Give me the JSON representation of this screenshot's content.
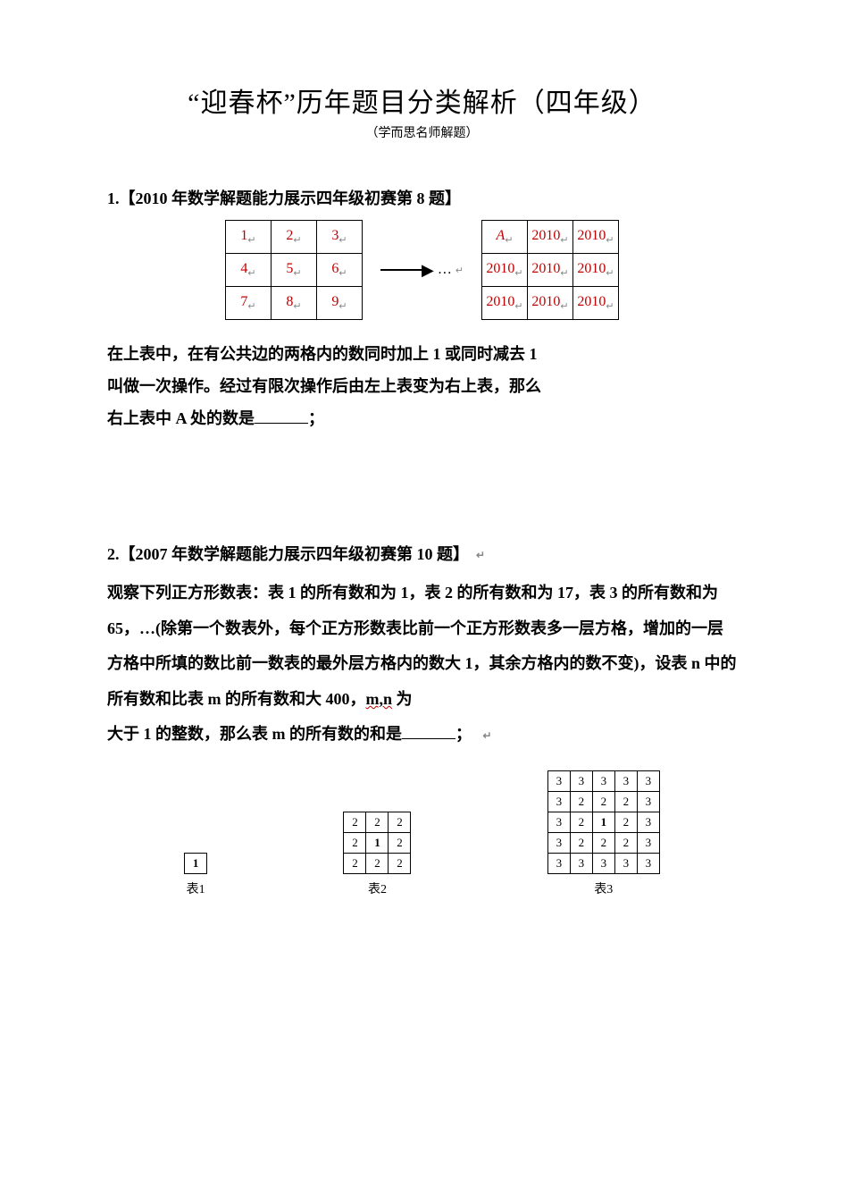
{
  "title": "“迎春杯”历年题目分类解析（四年级）",
  "subtitle": "（学而思名师解题）",
  "problem1": {
    "heading": "1.【2010 年数学解题能力展示四年级初赛第 8 题】",
    "left_grid": [
      [
        "1",
        "2",
        "3"
      ],
      [
        "4",
        "5",
        "6"
      ],
      [
        "7",
        "8",
        "9"
      ]
    ],
    "right_grid": [
      [
        "A",
        "2010",
        "2010"
      ],
      [
        "2010",
        "2010",
        "2010"
      ],
      [
        "2010",
        "2010",
        "2010"
      ]
    ],
    "arrow_text": "…",
    "text_line1": "在上表中，在有公共边的两格内的数同时加上 1 或同时减去 1",
    "text_line2": "叫做一次操作。经过有限次操作后由左上表变为右上表，那么",
    "text_line3_prefix": "右上表中 A 处的数是",
    "text_line3_suffix": "；",
    "cell_color": "#c00000",
    "return_mark": "↵"
  },
  "problem2": {
    "heading": "2.【2007 年数学解题能力展示四年级初赛第 10 题】",
    "para": "观察下列正方形数表：表 1 的所有数和为 1，表 2 的所有数和为 17，表 3 的所有数和为 65，…(除第一个数表外，每个正方形数表比前一个正方形数表多一层方格，增加的一层方格中所填的数比前一数表的最外层方格内的数大 1，其余方格内的数不变)，设表 n 中的所有数和比表 m 的所有数和大 400，",
    "mn_text": "m,n",
    "para_tail_1": " 为",
    "para_tail_2": "大于 1 的整数，那么表 m 的所有数的和是",
    "blank_suffix": "；",
    "table1": [
      [
        "1"
      ]
    ],
    "table2": [
      [
        "2",
        "2",
        "2"
      ],
      [
        "2",
        "1",
        "2"
      ],
      [
        "2",
        "2",
        "2"
      ]
    ],
    "table3": [
      [
        "3",
        "3",
        "3",
        "3",
        "3"
      ],
      [
        "3",
        "2",
        "2",
        "2",
        "3"
      ],
      [
        "3",
        "2",
        "1",
        "2",
        "3"
      ],
      [
        "3",
        "2",
        "2",
        "2",
        "3"
      ],
      [
        "3",
        "3",
        "3",
        "3",
        "3"
      ]
    ],
    "label1": "表1",
    "label2": "表2",
    "label3": "表3",
    "end_mark": "↵"
  },
  "colors": {
    "text": "#000000",
    "red": "#c00000",
    "background": "#ffffff"
  }
}
